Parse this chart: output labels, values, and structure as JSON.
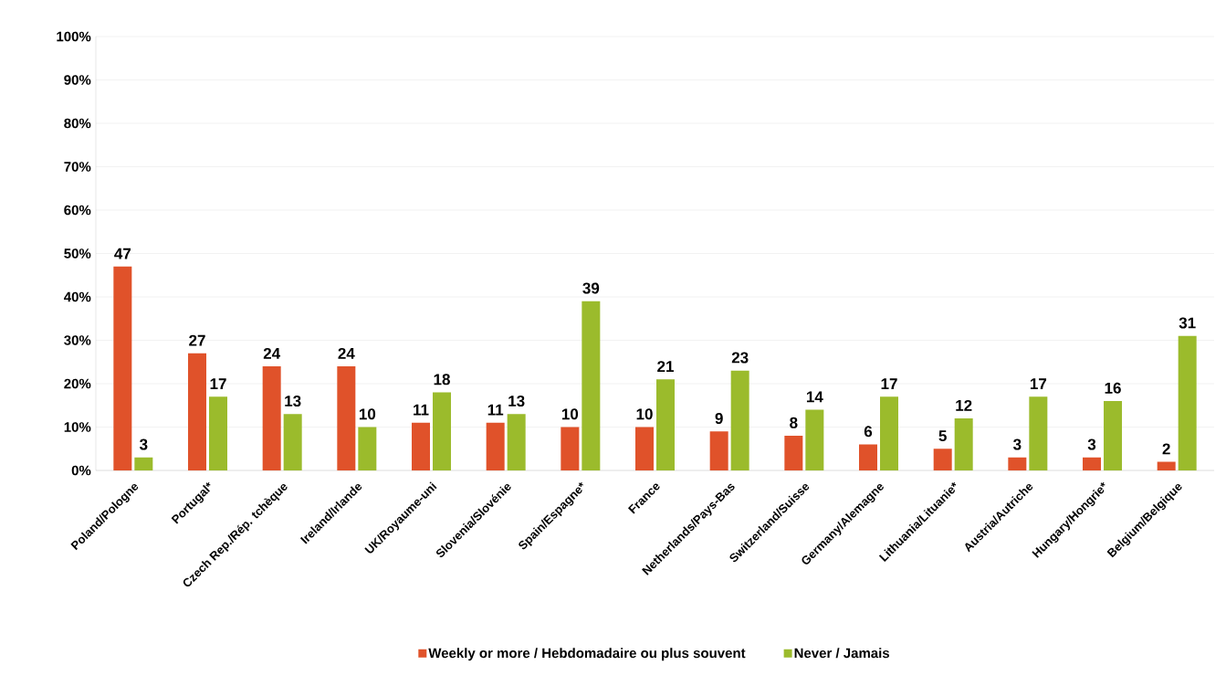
{
  "chart_data": {
    "type": "bar",
    "categories": [
      "Poland/Pologne",
      "Portugal*",
      "Czech Rep./Rép. tchèque",
      "Ireland/Irlande",
      "UK/Royaume-uni",
      "Slovenia/Slovénie",
      "Spain/Espagne*",
      "France",
      "Netherlands/Pays-Bas",
      "Switzerland/Suisse",
      "Germany/Alemagne",
      "Lithuania/Lituanie*",
      "Austria/Autriche",
      "Hungary/Hongrie*",
      "Belgium/Belgique"
    ],
    "series": [
      {
        "name": "Weekly or more / Hebdomadaire ou plus souvent",
        "color": "#e0522a",
        "values": [
          47,
          27,
          24,
          24,
          11,
          11,
          10,
          10,
          9,
          8,
          6,
          5,
          3,
          3,
          2
        ]
      },
      {
        "name": "Never / Jamais",
        "color": "#9bbb2c",
        "values": [
          3,
          17,
          13,
          10,
          18,
          13,
          39,
          21,
          23,
          14,
          17,
          12,
          17,
          16,
          31
        ]
      }
    ],
    "ylim": [
      0,
      100
    ],
    "yticks": [
      {
        "value": 0,
        "label": "0%"
      },
      {
        "value": 10,
        "label": "10%"
      },
      {
        "value": 20,
        "label": "20%"
      },
      {
        "value": 30,
        "label": "30%"
      },
      {
        "value": 40,
        "label": "40%"
      },
      {
        "value": 50,
        "label": "50%"
      },
      {
        "value": 60,
        "label": "60%"
      },
      {
        "value": 70,
        "label": "70%"
      },
      {
        "value": 80,
        "label": "80%"
      },
      {
        "value": 90,
        "label": "90%"
      },
      {
        "value": 100,
        "label": "100%"
      }
    ],
    "grid": "y",
    "legend": "bottom",
    "data_labels": true
  }
}
